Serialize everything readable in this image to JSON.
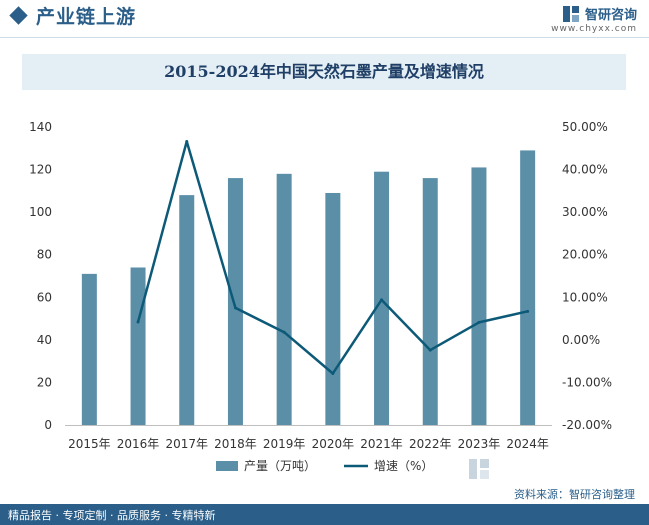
{
  "header": {
    "section_title": "产业链上游",
    "brand_name": "智研咨询",
    "brand_url": "www.chyxx.com",
    "accent_color": "#2b5f8a"
  },
  "chart_data": {
    "type": "bar+line",
    "title": "2015-2024年中国天然石墨产量及增速情况",
    "categories": [
      "2015年",
      "2016年",
      "2017年",
      "2018年",
      "2019年",
      "2020年",
      "2021年",
      "2022年",
      "2023年",
      "2024年"
    ],
    "series": [
      {
        "name": "产量（万吨）",
        "type": "bar",
        "axis": "left",
        "color": "#5b8fa8",
        "values": [
          71,
          74,
          108,
          116,
          118,
          109,
          119,
          116,
          121,
          129
        ]
      },
      {
        "name": "增速（%）",
        "type": "line",
        "axis": "right",
        "color": "#0d5a78",
        "values": [
          null,
          4.2,
          46.6,
          7.5,
          1.8,
          -7.9,
          9.4,
          -2.4,
          4.1,
          6.7
        ]
      }
    ],
    "left_axis": {
      "min": 0,
      "max": 140,
      "step": 20,
      "ticks": [
        "0",
        "20",
        "40",
        "60",
        "80",
        "100",
        "120",
        "140"
      ]
    },
    "right_axis": {
      "min": -20,
      "max": 50,
      "step": 10,
      "ticks": [
        "-20.00%",
        "-10.00%",
        "0.00%",
        "10.00%",
        "20.00%",
        "30.00%",
        "40.00%",
        "50.00%"
      ]
    },
    "grid": false,
    "legend_position": "bottom"
  },
  "footer": {
    "tagline": "精品报告 · 专项定制 · 品质服务 · 专精特新",
    "source": "资料来源：智研咨询整理"
  }
}
